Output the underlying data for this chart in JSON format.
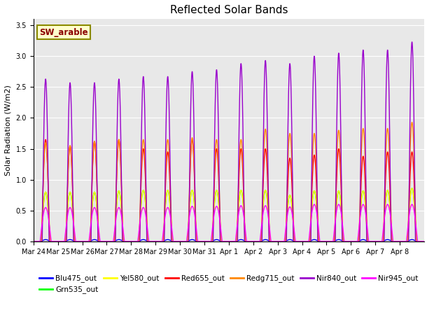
{
  "title": "Reflected Solar Bands",
  "ylabel": "Solar Radiation (W/m2)",
  "annotation": "SW_arable",
  "ylim": [
    0,
    3.6
  ],
  "bands": {
    "Blu475_out": {
      "color": "#0000FF",
      "lw": 1.0
    },
    "Grn535_out": {
      "color": "#00FF00",
      "lw": 1.0
    },
    "Yel580_out": {
      "color": "#FFFF00",
      "lw": 1.0
    },
    "Red655_out": {
      "color": "#FF0000",
      "lw": 1.0
    },
    "Redg715_out": {
      "color": "#FF8800",
      "lw": 1.0
    },
    "Nir840_out": {
      "color": "#9900CC",
      "lw": 1.0
    },
    "Nir945_out": {
      "color": "#FF00FF",
      "lw": 1.0
    }
  },
  "n_days": 16,
  "pts_per_day": 288,
  "day_peaks_Blu": [
    0.03,
    0.03,
    0.03,
    0.03,
    0.03,
    0.03,
    0.03,
    0.03,
    0.03,
    0.03,
    0.03,
    0.03,
    0.03,
    0.03,
    0.03,
    0.03
  ],
  "day_peaks_Grn": [
    0.8,
    0.8,
    0.8,
    0.82,
    0.83,
    0.83,
    0.83,
    0.83,
    0.83,
    0.83,
    0.75,
    0.82,
    0.82,
    0.82,
    0.83,
    0.86
  ],
  "day_peaks_Yel": [
    0.8,
    0.8,
    0.8,
    0.82,
    0.83,
    0.83,
    0.83,
    0.83,
    0.83,
    0.83,
    0.75,
    0.82,
    0.82,
    0.82,
    0.83,
    0.86
  ],
  "day_peaks_Red": [
    1.65,
    1.55,
    1.62,
    1.65,
    1.5,
    1.45,
    1.65,
    1.5,
    1.5,
    1.5,
    1.35,
    1.4,
    1.5,
    1.38,
    1.45,
    1.45
  ],
  "day_peaks_Redg": [
    1.6,
    1.55,
    1.62,
    1.65,
    1.65,
    1.65,
    1.68,
    1.65,
    1.65,
    1.82,
    1.75,
    1.75,
    1.8,
    1.83,
    1.83,
    1.93
  ],
  "day_peaks_Nir840": [
    2.63,
    2.57,
    2.57,
    2.63,
    2.67,
    2.67,
    2.75,
    2.78,
    2.88,
    2.93,
    2.88,
    3.0,
    3.05,
    3.1,
    3.1,
    3.23
  ],
  "day_peaks_Nir945": [
    0.55,
    0.55,
    0.55,
    0.55,
    0.55,
    0.55,
    0.57,
    0.57,
    0.58,
    0.58,
    0.56,
    0.6,
    0.6,
    0.6,
    0.6,
    0.6
  ],
  "xtick_labels": [
    "Mar 24",
    "Mar 25",
    "Mar 26",
    "Mar 27",
    "Mar 28",
    "Mar 29",
    "Mar 30",
    "Mar 31",
    "Apr 1",
    "Apr 2",
    "Apr 3",
    "Apr 4",
    "Apr 5",
    "Apr 6",
    "Apr 7",
    "Apr 8"
  ],
  "bg_color": "#E8E8E8",
  "title_fontsize": 11,
  "axis_fontsize": 7,
  "legend_fontsize": 7.5
}
